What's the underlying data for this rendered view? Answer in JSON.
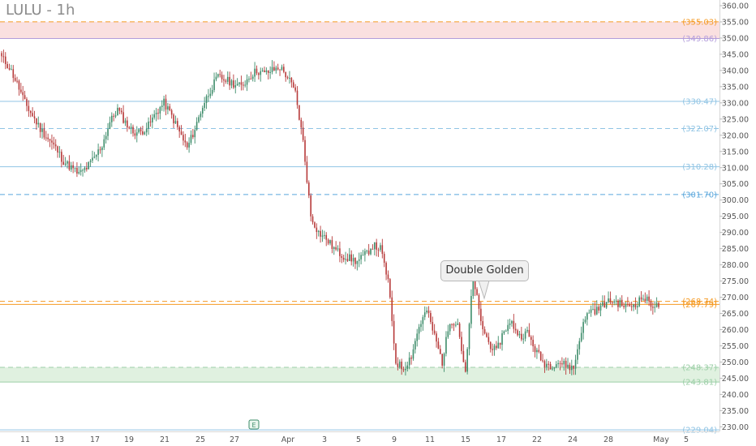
{
  "title": "LULU - 1h",
  "chart_data": {
    "type": "candlestick",
    "title": "LULU - 1h",
    "ylim": [
      227,
      363
    ],
    "y_ticks": [
      230,
      235,
      240,
      245,
      250,
      255,
      260,
      265,
      270,
      275,
      280,
      285,
      290,
      295,
      300,
      305,
      310,
      315,
      320,
      325,
      330,
      335,
      340,
      345,
      350,
      355,
      360
    ],
    "x_labels": [
      "11",
      "13",
      "17",
      "19",
      "21",
      "25",
      "27",
      "Apr",
      "3",
      "5",
      "9",
      "11",
      "15",
      "17",
      "22",
      "24",
      "28",
      "May",
      "5"
    ],
    "zones": [
      {
        "from": 349.86,
        "to": 355.03,
        "color": "#f8d5d5"
      },
      {
        "from": 243.81,
        "to": 248.37,
        "color": "#d5ecd5"
      }
    ],
    "levels": [
      {
        "label": "(355.03)",
        "value": 355.03,
        "color": "#f59a23",
        "style": "dashed"
      },
      {
        "label": "(349.86)",
        "value": 349.86,
        "color": "#b39ddb",
        "style": "solid"
      },
      {
        "label": "(330.47)",
        "value": 330.47,
        "color": "#90c4e4",
        "style": "solid"
      },
      {
        "label": "(322.07)",
        "value": 322.07,
        "color": "#90c4e4",
        "style": "dashed"
      },
      {
        "label": "(310.28)",
        "value": 310.28,
        "color": "#90c4e4",
        "style": "solid"
      },
      {
        "label": "(301.70)",
        "value": 301.7,
        "color": "#5aa7dc",
        "style": "dashed"
      },
      {
        "label": "(268.74)",
        "value": 268.74,
        "color": "#f59a23",
        "style": "dashed"
      },
      {
        "label": "(267.79)",
        "value": 267.79,
        "color": "#f59a23",
        "style": "solid"
      },
      {
        "label": "(248.37)",
        "value": 248.37,
        "color": "#9ccfa7",
        "style": "dashed"
      },
      {
        "label": "(243.81)",
        "value": 243.81,
        "color": "#9ccfa7",
        "style": "solid"
      },
      {
        "label": "(229.04)",
        "value": 229.04,
        "color": "#90c4e4",
        "style": "solid"
      }
    ],
    "price_path": [
      344,
      341,
      336,
      330,
      326,
      322,
      319,
      316,
      312,
      310,
      308,
      310,
      313,
      317,
      324,
      328,
      324,
      321,
      321,
      323,
      327,
      330,
      326,
      321,
      316,
      322,
      329,
      334,
      338,
      337,
      336,
      335,
      338,
      340,
      339,
      340,
      341,
      338,
      333,
      318,
      295,
      290,
      288,
      285,
      283,
      282,
      281,
      283,
      286,
      285,
      275,
      250,
      248,
      252,
      261,
      266,
      258,
      250,
      263,
      262,
      246,
      277,
      262,
      256,
      253,
      260,
      262,
      258,
      259,
      254,
      250,
      249,
      250,
      249,
      248,
      260,
      266,
      266,
      268,
      269,
      268,
      267,
      268,
      270,
      268,
      267
    ],
    "annotations": [
      {
        "text": "Double Golden",
        "value": 270
      },
      {
        "text": "E",
        "type": "earnings-marker"
      }
    ],
    "colors": {
      "up": "#3d8c6a",
      "down": "#b73a3a"
    }
  }
}
